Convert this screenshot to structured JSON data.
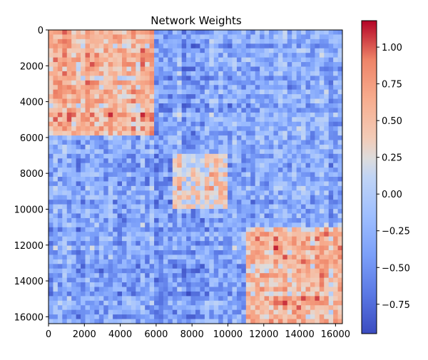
{
  "chart_data": {
    "type": "heatmap",
    "title": "Network Weights",
    "xlabel": "",
    "ylabel": "",
    "x_ticks": [
      0,
      2000,
      4000,
      6000,
      8000,
      10000,
      12000,
      14000,
      16000
    ],
    "y_ticks": [
      0,
      2000,
      4000,
      6000,
      8000,
      10000,
      12000,
      14000,
      16000
    ],
    "xlim": [
      0,
      16384
    ],
    "ylim": [
      16384,
      0
    ],
    "colorbar": {
      "colormap": "coolwarm",
      "range": [
        -0.95,
        1.18
      ],
      "ticks": [
        -0.75,
        -0.5,
        -0.25,
        0.0,
        0.25,
        0.5,
        0.75,
        1.0
      ],
      "tick_labels": [
        "−0.75",
        "−0.50",
        "−0.25",
        "0.00",
        "0.25",
        "0.50",
        "0.75",
        "1.00"
      ]
    },
    "blocks": [
      {
        "range": [
          0,
          6000
        ],
        "mean_weight": 0.55
      },
      {
        "range": [
          7000,
          10000
        ],
        "mean_weight": 0.35
      },
      {
        "range": [
          11000,
          16384
        ],
        "mean_weight": 0.55
      }
    ],
    "off_block_mean_weight": -0.35,
    "grid": false
  }
}
